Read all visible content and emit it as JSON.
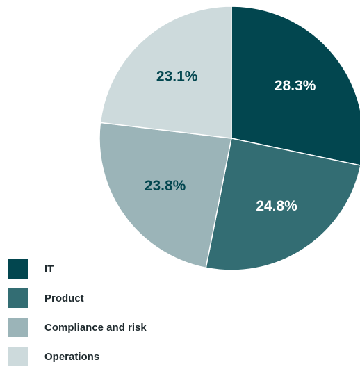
{
  "chart_data": {
    "type": "pie",
    "start_angle_deg": 0,
    "direction": "clockwise",
    "slices": [
      {
        "name": "IT",
        "value": 28.3,
        "label": "28.3%",
        "color": "#02464f",
        "label_color": "#ffffff"
      },
      {
        "name": "Product",
        "value": 24.8,
        "label": "24.8%",
        "color": "#336d73",
        "label_color": "#ffffff"
      },
      {
        "name": "Compliance and risk",
        "value": 23.8,
        "label": "23.8%",
        "color": "#9bb4b8",
        "label_color": "#02464f"
      },
      {
        "name": "Operations",
        "value": 23.1,
        "label": "23.1%",
        "color": "#cddadc",
        "label_color": "#02464f"
      }
    ],
    "legend_position": "bottom-left"
  }
}
